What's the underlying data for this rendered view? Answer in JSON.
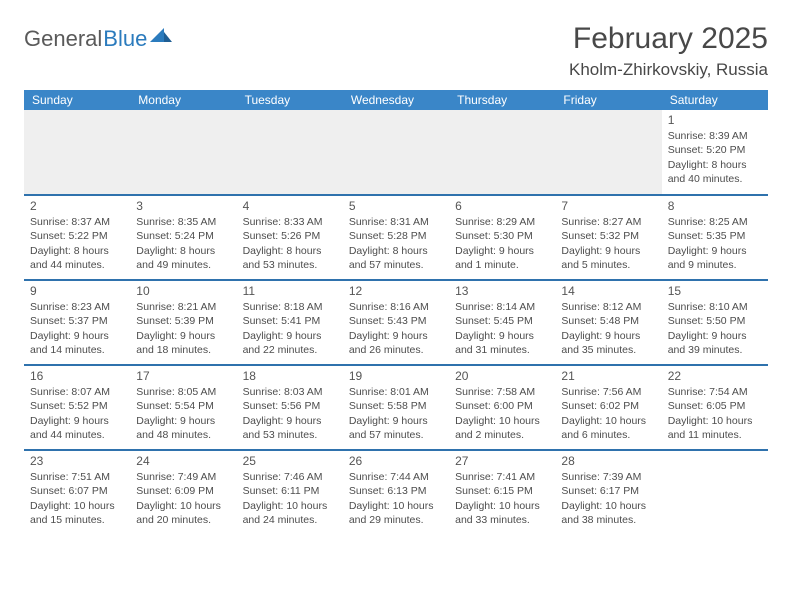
{
  "brand": {
    "part1": "General",
    "part2": "Blue"
  },
  "title": {
    "month": "February 2025",
    "location": "Kholm-Zhirkovskiy, Russia"
  },
  "colors": {
    "header_bg": "#3a86c8",
    "row_divider": "#2f72ad",
    "empty_bg": "#efefef",
    "text": "#4a4a4a",
    "brand_blue": "#2b7bbd"
  },
  "weekdays": [
    "Sunday",
    "Monday",
    "Tuesday",
    "Wednesday",
    "Thursday",
    "Friday",
    "Saturday"
  ],
  "first_weekday_index": 6,
  "days": [
    {
      "n": 1,
      "sunrise": "8:39 AM",
      "sunset": "5:20 PM",
      "daylight": "8 hours and 40 minutes."
    },
    {
      "n": 2,
      "sunrise": "8:37 AM",
      "sunset": "5:22 PM",
      "daylight": "8 hours and 44 minutes."
    },
    {
      "n": 3,
      "sunrise": "8:35 AM",
      "sunset": "5:24 PM",
      "daylight": "8 hours and 49 minutes."
    },
    {
      "n": 4,
      "sunrise": "8:33 AM",
      "sunset": "5:26 PM",
      "daylight": "8 hours and 53 minutes."
    },
    {
      "n": 5,
      "sunrise": "8:31 AM",
      "sunset": "5:28 PM",
      "daylight": "8 hours and 57 minutes."
    },
    {
      "n": 6,
      "sunrise": "8:29 AM",
      "sunset": "5:30 PM",
      "daylight": "9 hours and 1 minute."
    },
    {
      "n": 7,
      "sunrise": "8:27 AM",
      "sunset": "5:32 PM",
      "daylight": "9 hours and 5 minutes."
    },
    {
      "n": 8,
      "sunrise": "8:25 AM",
      "sunset": "5:35 PM",
      "daylight": "9 hours and 9 minutes."
    },
    {
      "n": 9,
      "sunrise": "8:23 AM",
      "sunset": "5:37 PM",
      "daylight": "9 hours and 14 minutes."
    },
    {
      "n": 10,
      "sunrise": "8:21 AM",
      "sunset": "5:39 PM",
      "daylight": "9 hours and 18 minutes."
    },
    {
      "n": 11,
      "sunrise": "8:18 AM",
      "sunset": "5:41 PM",
      "daylight": "9 hours and 22 minutes."
    },
    {
      "n": 12,
      "sunrise": "8:16 AM",
      "sunset": "5:43 PM",
      "daylight": "9 hours and 26 minutes."
    },
    {
      "n": 13,
      "sunrise": "8:14 AM",
      "sunset": "5:45 PM",
      "daylight": "9 hours and 31 minutes."
    },
    {
      "n": 14,
      "sunrise": "8:12 AM",
      "sunset": "5:48 PM",
      "daylight": "9 hours and 35 minutes."
    },
    {
      "n": 15,
      "sunrise": "8:10 AM",
      "sunset": "5:50 PM",
      "daylight": "9 hours and 39 minutes."
    },
    {
      "n": 16,
      "sunrise": "8:07 AM",
      "sunset": "5:52 PM",
      "daylight": "9 hours and 44 minutes."
    },
    {
      "n": 17,
      "sunrise": "8:05 AM",
      "sunset": "5:54 PM",
      "daylight": "9 hours and 48 minutes."
    },
    {
      "n": 18,
      "sunrise": "8:03 AM",
      "sunset": "5:56 PM",
      "daylight": "9 hours and 53 minutes."
    },
    {
      "n": 19,
      "sunrise": "8:01 AM",
      "sunset": "5:58 PM",
      "daylight": "9 hours and 57 minutes."
    },
    {
      "n": 20,
      "sunrise": "7:58 AM",
      "sunset": "6:00 PM",
      "daylight": "10 hours and 2 minutes."
    },
    {
      "n": 21,
      "sunrise": "7:56 AM",
      "sunset": "6:02 PM",
      "daylight": "10 hours and 6 minutes."
    },
    {
      "n": 22,
      "sunrise": "7:54 AM",
      "sunset": "6:05 PM",
      "daylight": "10 hours and 11 minutes."
    },
    {
      "n": 23,
      "sunrise": "7:51 AM",
      "sunset": "6:07 PM",
      "daylight": "10 hours and 15 minutes."
    },
    {
      "n": 24,
      "sunrise": "7:49 AM",
      "sunset": "6:09 PM",
      "daylight": "10 hours and 20 minutes."
    },
    {
      "n": 25,
      "sunrise": "7:46 AM",
      "sunset": "6:11 PM",
      "daylight": "10 hours and 24 minutes."
    },
    {
      "n": 26,
      "sunrise": "7:44 AM",
      "sunset": "6:13 PM",
      "daylight": "10 hours and 29 minutes."
    },
    {
      "n": 27,
      "sunrise": "7:41 AM",
      "sunset": "6:15 PM",
      "daylight": "10 hours and 33 minutes."
    },
    {
      "n": 28,
      "sunrise": "7:39 AM",
      "sunset": "6:17 PM",
      "daylight": "10 hours and 38 minutes."
    }
  ],
  "labels": {
    "sunrise": "Sunrise:",
    "sunset": "Sunset:",
    "daylight": "Daylight:"
  }
}
